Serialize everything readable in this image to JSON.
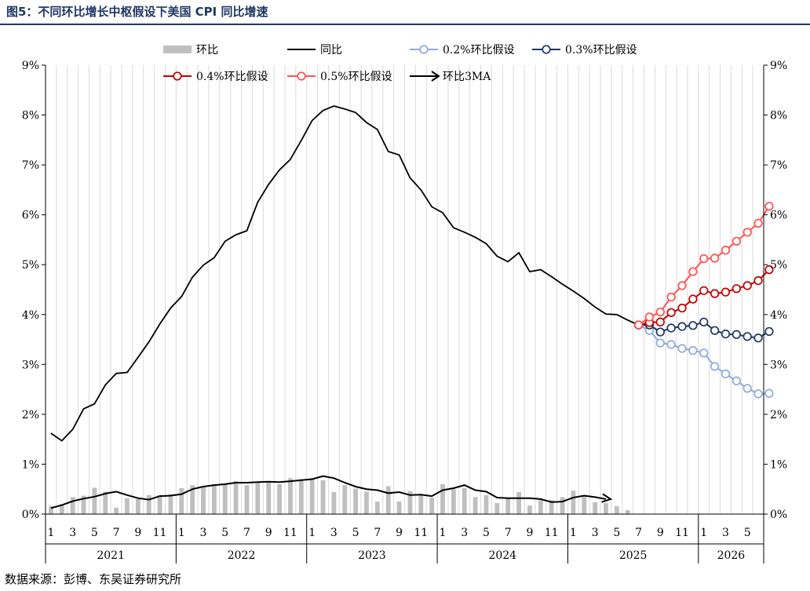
{
  "figure_title": "图5：不同环比增长中枢假设下美国 CPI 同比增速",
  "source": "数据来源：彭博、东吴证券研究所",
  "colors": {
    "title": "#1f3864",
    "mom_bar": "#bfbfbf",
    "yoy": "#000000",
    "s02": "#8eaadb",
    "s03": "#1f3864",
    "s04": "#c00000",
    "s05": "#ff5050",
    "ma3": "#000000",
    "grid": "#d9d9d9"
  },
  "chart_data": {
    "type": "bar+line",
    "y_left_ticks": [
      "0%",
      "1%",
      "2%",
      "3%",
      "4%",
      "5%",
      "6%",
      "7%",
      "8%",
      "9%"
    ],
    "y_right_ticks": [
      "0%",
      "1%",
      "2%",
      "3%",
      "4%",
      "5%",
      "6%",
      "7%",
      "8%",
      "9%"
    ],
    "ylim": [
      0,
      9
    ],
    "month_labels": [
      "1",
      "",
      "3",
      "",
      "5",
      "",
      "7",
      "",
      "9",
      "",
      "11",
      "",
      "1",
      "",
      "3",
      "",
      "5",
      "",
      "7",
      "",
      "9",
      "",
      "11",
      "",
      "1",
      "",
      "3",
      "",
      "5",
      "",
      "7",
      "",
      "9",
      "",
      "11",
      "",
      "1",
      "",
      "3",
      "",
      "5",
      "",
      "7",
      "",
      "9",
      "",
      "11",
      "",
      "1",
      "",
      "3",
      "",
      "5",
      "",
      "7",
      "",
      "9",
      "",
      "11",
      "",
      "1",
      "",
      "3",
      "",
      "5",
      ""
    ],
    "years": [
      {
        "label": "2021",
        "start": 0,
        "count": 12
      },
      {
        "label": "2022",
        "start": 12,
        "count": 12
      },
      {
        "label": "2023",
        "start": 24,
        "count": 12
      },
      {
        "label": "2024",
        "start": 36,
        "count": 12
      },
      {
        "label": "2025",
        "start": 48,
        "count": 12
      },
      {
        "label": "2026",
        "start": 60,
        "count": 6
      }
    ],
    "legend": [
      {
        "key": "mom",
        "label": "环比",
        "style": "bar"
      },
      {
        "key": "yoy",
        "label": "同比",
        "style": "line"
      },
      {
        "key": "s02",
        "label": "0.2%环比假设",
        "style": "marker"
      },
      {
        "key": "s03",
        "label": "0.3%环比假设",
        "style": "marker"
      },
      {
        "key": "s04",
        "label": "0.4%环比假设",
        "style": "marker"
      },
      {
        "key": "s05",
        "label": "0.5%环比假设",
        "style": "marker"
      },
      {
        "key": "ma3",
        "label": "环比3MA",
        "style": "arrow"
      }
    ],
    "mom": [
      0.16,
      0.2,
      0.34,
      0.37,
      0.53,
      0.45,
      0.13,
      0.32,
      0.3,
      0.38,
      0.38,
      0.4,
      0.52,
      0.58,
      0.55,
      0.6,
      0.59,
      0.66,
      0.58,
      0.63,
      0.66,
      0.6,
      0.72,
      0.7,
      0.72,
      0.68,
      0.44,
      0.58,
      0.51,
      0.45,
      0.25,
      0.56,
      0.25,
      0.46,
      0.38,
      0.33,
      0.6,
      0.5,
      0.52,
      0.34,
      0.38,
      0.22,
      0.32,
      0.44,
      0.17,
      0.28,
      0.28,
      0.34,
      0.47,
      0.37,
      0.24,
      0.22,
      0.16,
      0.08
    ],
    "yoy": [
      1.62,
      1.47,
      1.7,
      2.11,
      2.21,
      2.59,
      2.82,
      2.84,
      3.14,
      3.45,
      3.81,
      4.13,
      4.36,
      4.75,
      4.99,
      5.14,
      5.47,
      5.6,
      5.68,
      6.25,
      6.61,
      6.9,
      7.11,
      7.49,
      7.89,
      8.09,
      8.18,
      8.12,
      8.05,
      7.85,
      7.71,
      7.27,
      7.2,
      6.74,
      6.5,
      6.16,
      6.04,
      5.74,
      5.65,
      5.55,
      5.42,
      5.17,
      5.06,
      5.24,
      4.86,
      4.9,
      4.76,
      4.61,
      4.47,
      4.32,
      4.15,
      4.01,
      4.0,
      3.89,
      3.79
    ],
    "ma3": [
      0.12,
      0.18,
      0.26,
      0.31,
      0.35,
      0.41,
      0.45,
      0.38,
      0.32,
      0.29,
      0.36,
      0.37,
      0.4,
      0.5,
      0.55,
      0.58,
      0.6,
      0.63,
      0.63,
      0.64,
      0.65,
      0.64,
      0.66,
      0.68,
      0.7,
      0.76,
      0.72,
      0.63,
      0.55,
      0.5,
      0.48,
      0.42,
      0.44,
      0.38,
      0.39,
      0.36,
      0.48,
      0.52,
      0.58,
      0.48,
      0.45,
      0.33,
      0.32,
      0.32,
      0.32,
      0.3,
      0.24,
      0.25,
      0.33,
      0.37,
      0.34,
      0.3
    ],
    "scenario_x_start": 54,
    "s02": [
      3.79,
      3.68,
      3.43,
      3.4,
      3.32,
      3.28,
      3.23,
      2.96,
      2.81,
      2.67,
      2.52,
      2.41,
      2.42
    ],
    "s03": [
      3.79,
      3.79,
      3.65,
      3.73,
      3.76,
      3.78,
      3.85,
      3.68,
      3.61,
      3.6,
      3.56,
      3.53,
      3.66
    ],
    "s04": [
      3.79,
      3.84,
      3.85,
      4.04,
      4.13,
      4.31,
      4.48,
      4.42,
      4.45,
      4.52,
      4.58,
      4.68,
      4.9
    ],
    "s05": [
      3.79,
      3.95,
      4.05,
      4.35,
      4.58,
      4.86,
      5.12,
      5.13,
      5.29,
      5.47,
      5.65,
      5.83,
      6.17
    ]
  }
}
